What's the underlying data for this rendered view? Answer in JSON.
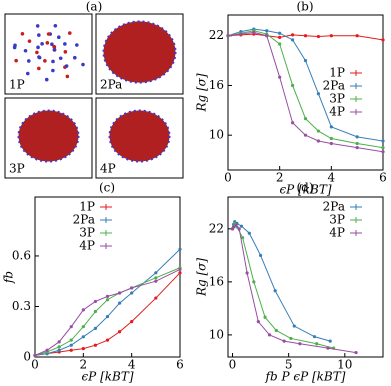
{
  "chart_data": [
    {
      "type": "image",
      "title": "(a)",
      "labels": [
        "1P",
        "2Pa",
        "3P",
        "4P"
      ]
    },
    {
      "type": "line",
      "title": "(b)",
      "xlabel": "ϵP [kBT]",
      "ylabel": "Rg [σ]",
      "x": [
        0,
        0.5,
        1,
        1.5,
        2,
        2.5,
        3,
        3.5,
        4,
        5,
        6
      ],
      "xlim": [
        0,
        6
      ],
      "xticks": [
        0,
        2,
        4,
        6
      ],
      "ylim": [
        5.8,
        24.5
      ],
      "yticks": [
        10,
        16,
        22
      ],
      "legend": "center right",
      "series": [
        {
          "name": "1P",
          "color": "#e41a1c",
          "values": [
            22,
            22.1,
            22.2,
            22,
            21.8,
            22.1,
            22,
            21.9,
            22,
            22,
            21.5
          ]
        },
        {
          "name": "2Pa",
          "color": "#377eb8",
          "values": [
            22,
            22.5,
            22.8,
            22.6,
            22.3,
            21.5,
            19,
            15,
            11,
            9.8,
            9.3
          ]
        },
        {
          "name": "3P",
          "color": "#4daf4a",
          "values": [
            22,
            22.3,
            22.6,
            22.2,
            21,
            16,
            12,
            10.5,
            9.6,
            9,
            8.5
          ]
        },
        {
          "name": "4P",
          "color": "#984ea3",
          "values": [
            22,
            22.2,
            22.4,
            22,
            17,
            11.5,
            10,
            9.3,
            9,
            8.5,
            8
          ]
        }
      ]
    },
    {
      "type": "line",
      "title": "(c)",
      "xlabel": "ϵP [kBT]",
      "ylabel": "fb",
      "x": [
        0,
        0.5,
        1,
        1.5,
        2,
        2.5,
        3,
        3.5,
        4,
        5,
        6
      ],
      "xlim": [
        0,
        6
      ],
      "xticks": [
        0,
        2,
        4,
        6
      ],
      "ylim": [
        0,
        0.95
      ],
      "yticks": [
        0,
        0.3,
        0.6
      ],
      "legend": "upper left",
      "series": [
        {
          "name": "1P",
          "color": "#e41a1c",
          "values": [
            0.01,
            0.02,
            0.03,
            0.04,
            0.05,
            0.07,
            0.1,
            0.15,
            0.21,
            0.35,
            0.5
          ]
        },
        {
          "name": "2Pa",
          "color": "#377eb8",
          "values": [
            0.01,
            0.02,
            0.04,
            0.07,
            0.12,
            0.17,
            0.24,
            0.32,
            0.38,
            0.5,
            0.64
          ]
        },
        {
          "name": "3P",
          "color": "#4daf4a",
          "values": [
            0.01,
            0.03,
            0.06,
            0.1,
            0.18,
            0.27,
            0.34,
            0.38,
            0.41,
            0.47,
            0.53
          ]
        },
        {
          "name": "4P",
          "color": "#984ea3",
          "values": [
            0.01,
            0.04,
            0.09,
            0.18,
            0.28,
            0.33,
            0.36,
            0.38,
            0.41,
            0.45,
            0.52
          ]
        }
      ]
    },
    {
      "type": "line",
      "title": "(d)",
      "xlabel": "fb P ϵP [kBT]",
      "ylabel": "Rg [σ]",
      "xlim": [
        -0.4,
        13.4
      ],
      "xticks": [
        0,
        5,
        10
      ],
      "ylim": [
        7.5,
        25.6
      ],
      "yticks": [
        10,
        16,
        22
      ],
      "legend": "upper right",
      "series": [
        {
          "name": "2Pa",
          "color": "#377eb8",
          "x": [
            0,
            0.1,
            0.2,
            0.4,
            0.8,
            1.5,
            2.5,
            3.8,
            5.5,
            7.3,
            8.7
          ],
          "values": [
            22,
            22.5,
            22.8,
            22.6,
            22.3,
            21.5,
            19,
            15,
            11,
            9.8,
            9.3
          ]
        },
        {
          "name": "3P",
          "color": "#4daf4a",
          "x": [
            0,
            0.1,
            0.2,
            0.4,
            0.9,
            1.9,
            2.9,
            3.9,
            5.2,
            7.5,
            9
          ],
          "values": [
            22,
            22.3,
            22.6,
            22.2,
            21,
            16,
            12,
            10.5,
            9.6,
            9,
            8.5
          ]
        },
        {
          "name": "4P",
          "color": "#984ea3",
          "x": [
            0,
            0.1,
            0.3,
            0.6,
            1.3,
            2.3,
            3.3,
            4.6,
            6,
            8.5,
            11
          ],
          "values": [
            22,
            22.2,
            22.4,
            22,
            17,
            11.5,
            10,
            9.3,
            9,
            8.5,
            8
          ]
        }
      ]
    }
  ]
}
